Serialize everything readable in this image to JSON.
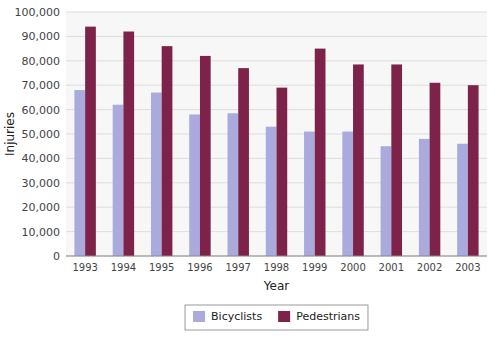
{
  "chart_data": {
    "type": "bar",
    "xlabel": "Year",
    "ylabel": "Injuries",
    "categories": [
      "1993",
      "1994",
      "1995",
      "1996",
      "1997",
      "1998",
      "1999",
      "2000",
      "2001",
      "2002",
      "2003"
    ],
    "series": [
      {
        "name": "Bicyclists",
        "color": "#aaaadd",
        "values": [
          68000,
          62000,
          67000,
          58000,
          58500,
          53000,
          51000,
          51000,
          45000,
          48000,
          46000
        ]
      },
      {
        "name": "Pedestrians",
        "color": "#7d2248",
        "values": [
          94000,
          92000,
          86000,
          82000,
          77000,
          69000,
          85000,
          78500,
          78500,
          71000,
          70000
        ]
      }
    ],
    "ylim": [
      0,
      100000
    ],
    "yticks": [
      0,
      {
        "value": 10000,
        "label": "10,000"
      },
      {
        "value": 20000,
        "label": "20,000"
      },
      {
        "value": 30000,
        "label": "30,000"
      },
      {
        "value": 40000,
        "label": "40,000"
      },
      {
        "value": 50000,
        "label": "50,000"
      },
      {
        "value": 60000,
        "label": "60,000"
      },
      {
        "value": 70000,
        "label": "70,000"
      },
      {
        "value": 80000,
        "label": "80,000"
      },
      {
        "value": 90000,
        "label": "90,000"
      },
      {
        "value": 100000,
        "label": "100,000"
      }
    ],
    "grid": true,
    "legend": "bottom"
  }
}
